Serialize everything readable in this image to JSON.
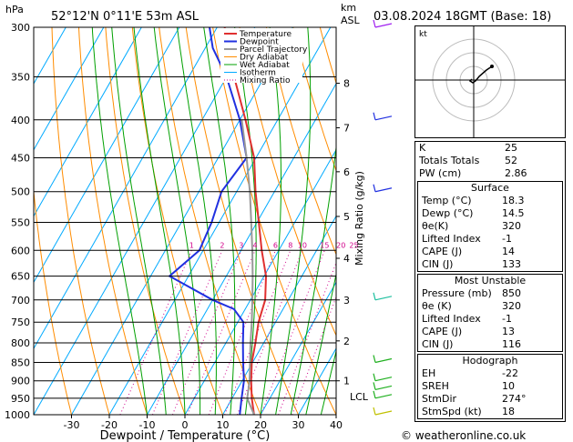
{
  "header": {
    "left_unit": "hPa",
    "location": "52°12'N  0°11'E  53m  ASL",
    "right_unit_km": "km",
    "right_unit_asl": "ASL",
    "datetime": "03.08.2024  18GMT  (Base: 18)"
  },
  "colors": {
    "temperature": "#e03030",
    "dewpoint": "#2030e0",
    "parcel": "#999999",
    "dry_adiabat": "#ff8c00",
    "wet_adiabat": "#00a000",
    "isotherm": "#00aaff",
    "mixing_ratio": "#d0008a"
  },
  "legend": [
    "Temperature",
    "Dewpoint",
    "Parcel Trajectory",
    "Dry Adiabat",
    "Wet Adiabat",
    "Isotherm",
    "Mixing Ratio"
  ],
  "chart_data": {
    "type": "line",
    "title": "",
    "xlabel": "Dewpoint / Temperature (°C)",
    "ylabel_right": "Mixing Ratio (g/kg)",
    "x_ticks": [
      -30,
      -20,
      -10,
      0,
      10,
      20,
      30,
      40
    ],
    "pressure_levels": [
      300,
      350,
      400,
      450,
      500,
      550,
      600,
      650,
      700,
      750,
      800,
      850,
      900,
      950,
      1000
    ],
    "km_levels": [
      1,
      2,
      3,
      4,
      5,
      6,
      7,
      8
    ],
    "lcl_label": "LCL",
    "mixing_ratio_labels": [
      "1",
      "2",
      "3",
      "4",
      "6",
      "8",
      "10",
      "15",
      "20",
      "25"
    ],
    "series": [
      {
        "name": "Temperature",
        "p": [
          1000,
          950,
          900,
          850,
          800,
          750,
          700,
          650,
          600,
          550,
          500,
          450,
          400,
          350,
          300
        ],
        "t": [
          18.3,
          15.2,
          12.4,
          9.8,
          7.8,
          5.5,
          3.9,
          0.5,
          -4.5,
          -9.5,
          -15.0,
          -20.5,
          -28.5,
          -38.0,
          -48.0
        ]
      },
      {
        "name": "Dewpoint",
        "p": [
          1000,
          950,
          900,
          850,
          800,
          750,
          720,
          700,
          650,
          600,
          550,
          500,
          450,
          400,
          350,
          320,
          300
        ],
        "t": [
          14.5,
          12.5,
          10.5,
          7.5,
          4.5,
          1.5,
          -3.0,
          -10.0,
          -25.0,
          -21.0,
          -22.0,
          -24.0,
          -22.5,
          -30.0,
          -40.0,
          -48.0,
          -52.0
        ]
      },
      {
        "name": "Parcel Trajectory",
        "p": [
          1000,
          950,
          900,
          850,
          800,
          750,
          700,
          650,
          600,
          550,
          500,
          450,
          400
        ],
        "t": [
          18.3,
          14.0,
          12.0,
          9.3,
          6.5,
          3.7,
          0.5,
          -3.0,
          -7.0,
          -11.5,
          -16.5,
          -22.5,
          -29.5
        ]
      }
    ]
  },
  "stats": {
    "k": {
      "label": "K",
      "value": "25"
    },
    "totals": {
      "label": "Totals Totals",
      "value": "52"
    },
    "pw": {
      "label": "PW (cm)",
      "value": "2.86"
    },
    "surface": {
      "title": "Surface",
      "rows": [
        {
          "label": "Temp (°C)",
          "value": "18.3"
        },
        {
          "label": "Dewp (°C)",
          "value": "14.5"
        },
        {
          "label": "θe(K)",
          "value": "320"
        },
        {
          "label": "Lifted Index",
          "value": "-1"
        },
        {
          "label": "CAPE (J)",
          "value": "14"
        },
        {
          "label": "CIN (J)",
          "value": "133"
        }
      ]
    },
    "most_unstable": {
      "title": "Most Unstable",
      "rows": [
        {
          "label": "Pressure (mb)",
          "value": "850"
        },
        {
          "label": "θe (K)",
          "value": "320"
        },
        {
          "label": "Lifted Index",
          "value": "-1"
        },
        {
          "label": "CAPE (J)",
          "value": "13"
        },
        {
          "label": "CIN (J)",
          "value": "116"
        }
      ]
    },
    "hodograph": {
      "title": "Hodograph",
      "rows": [
        {
          "label": "EH",
          "value": "-22"
        },
        {
          "label": "SREH",
          "value": "10"
        },
        {
          "label": "StmDir",
          "value": "274°"
        },
        {
          "label": "StmSpd (kt)",
          "value": "18"
        }
      ]
    }
  },
  "hodo_unit": "kt",
  "copyright": "© weatheronline.co.uk"
}
